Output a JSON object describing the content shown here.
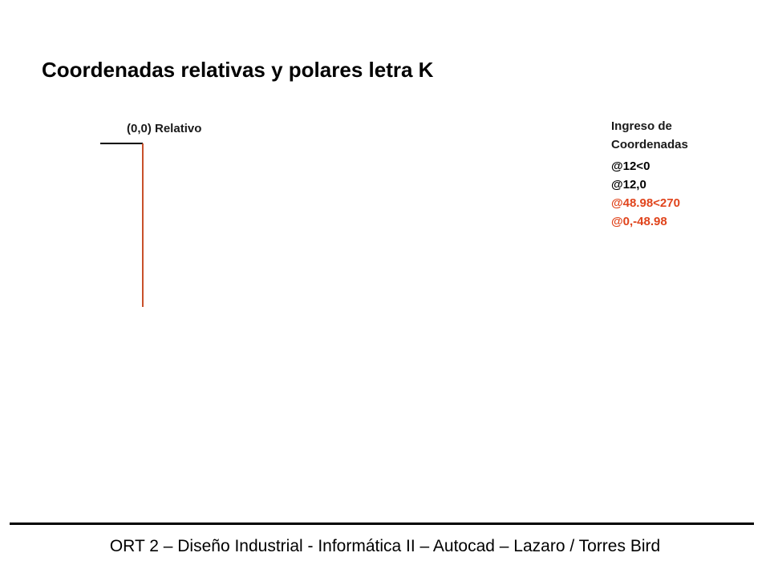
{
  "slide": {
    "title": "Coordenadas relativas y polares letra K",
    "origin_label": "(0,0) Relativo",
    "coordinates_panel": {
      "heading_line1": "Ingreso de",
      "heading_line2": "Coordenadas",
      "entries": [
        {
          "text": "@12<0",
          "color": "#000000"
        },
        {
          "text": "@12,0",
          "color": "#000000"
        },
        {
          "text": "@48.98<270",
          "color": "#e0441c"
        },
        {
          "text": "@0,-48.98",
          "color": "#e0441c"
        }
      ]
    },
    "footer": "ORT 2 – Diseño Industrial - Informática II – Autocad – Lazaro / Torres Bird"
  },
  "colors": {
    "first_segment": "#000000",
    "second_segment": "#c8502a",
    "highlight_text": "#e0441c"
  }
}
